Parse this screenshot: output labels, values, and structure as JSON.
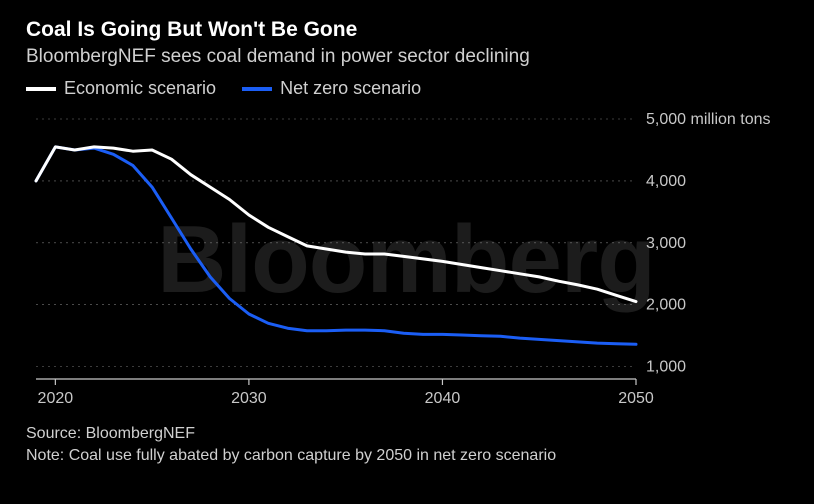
{
  "header": {
    "title": "Coal Is Going But Won't Be Gone",
    "subtitle": "BloombergNEF sees coal demand in power sector declining"
  },
  "legend": {
    "series1": {
      "label": "Economic scenario",
      "color": "#ffffff"
    },
    "series2": {
      "label": "Net zero scenario",
      "color": "#1b5ef5"
    }
  },
  "chart": {
    "type": "line",
    "background_color": "#000000",
    "watermark": "Bloomberg",
    "watermark_color": "#333333",
    "grid_color": "#777777",
    "axis_line_color": "#c8c8c8",
    "axis_text_color": "#c8c8c8",
    "axis_fontsize": 16,
    "line_width": 3,
    "xlim": [
      2019,
      2050
    ],
    "ylim": [
      800,
      5000
    ],
    "x_ticks": [
      2020,
      2030,
      2040,
      2050
    ],
    "y_ticks": [
      1000,
      2000,
      3000,
      4000,
      5000
    ],
    "y_top_label": "5,000 million tons",
    "y_label_1000": "1,000",
    "y_label_2000": "2,000",
    "y_label_3000": "3,000",
    "y_label_4000": "4,000",
    "series": {
      "economic": {
        "color": "#ffffff",
        "x": [
          2019,
          2020,
          2021,
          2022,
          2023,
          2024,
          2025,
          2026,
          2027,
          2028,
          2029,
          2030,
          2031,
          2032,
          2033,
          2034,
          2035,
          2036,
          2037,
          2038,
          2039,
          2040,
          2041,
          2042,
          2043,
          2044,
          2045,
          2046,
          2047,
          2048,
          2049,
          2050
        ],
        "y": [
          4000,
          4550,
          4500,
          4550,
          4530,
          4480,
          4500,
          4350,
          4100,
          3900,
          3700,
          3450,
          3250,
          3100,
          2950,
          2900,
          2850,
          2820,
          2820,
          2780,
          2740,
          2700,
          2650,
          2600,
          2550,
          2500,
          2450,
          2380,
          2320,
          2250,
          2150,
          2050
        ]
      },
      "netzero": {
        "color": "#1b5ef5",
        "x": [
          2019,
          2020,
          2021,
          2022,
          2023,
          2024,
          2025,
          2026,
          2027,
          2028,
          2029,
          2030,
          2031,
          2032,
          2033,
          2034,
          2035,
          2036,
          2037,
          2038,
          2039,
          2040,
          2041,
          2042,
          2043,
          2044,
          2045,
          2046,
          2047,
          2048,
          2049,
          2050
        ],
        "y": [
          4000,
          4550,
          4500,
          4530,
          4430,
          4250,
          3900,
          3400,
          2900,
          2450,
          2100,
          1850,
          1700,
          1620,
          1580,
          1580,
          1590,
          1590,
          1580,
          1540,
          1520,
          1520,
          1510,
          1500,
          1490,
          1460,
          1440,
          1420,
          1400,
          1380,
          1370,
          1360
        ]
      }
    }
  },
  "footer": {
    "source": "Source: BloombergNEF",
    "note": "Note: Coal use fully abated by carbon capture by 2050 in net zero scenario"
  }
}
